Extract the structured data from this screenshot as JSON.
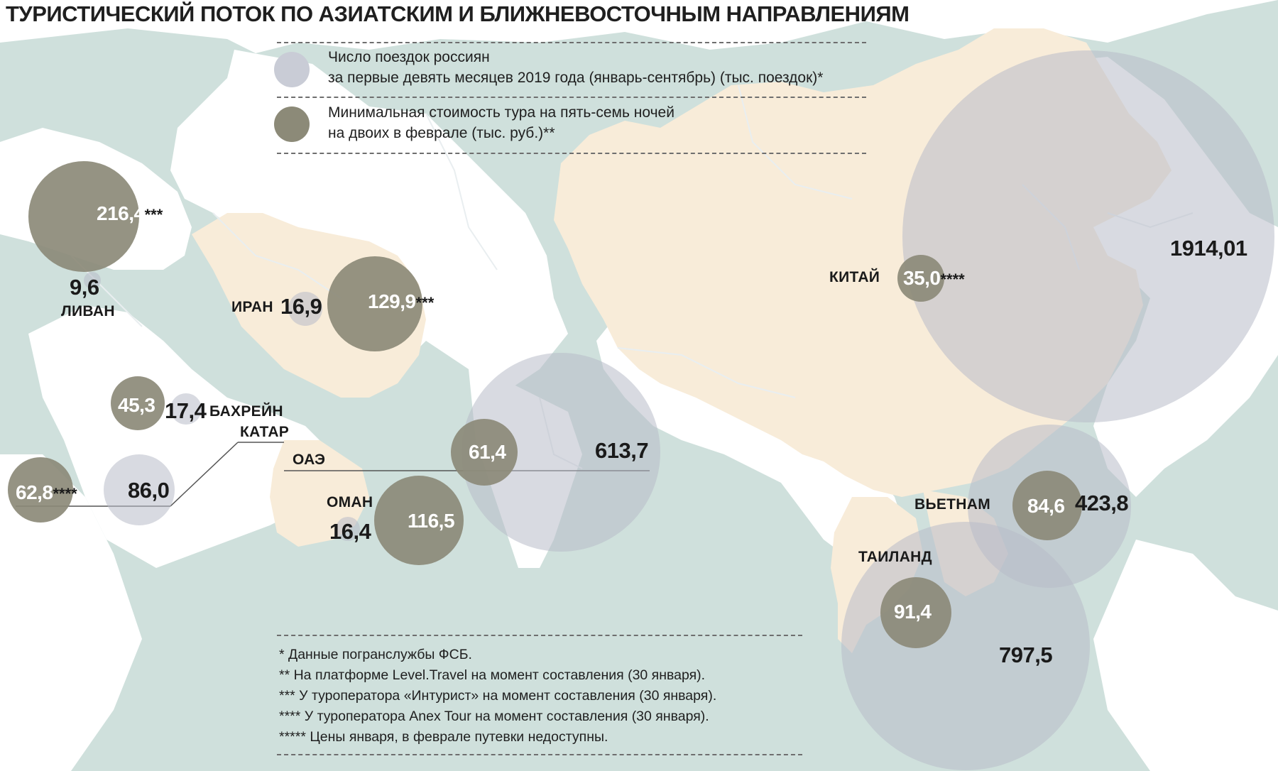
{
  "title": "ТУРИСТИЧЕСКИЙ ПОТОК ПО АЗИАТСКИМ И БЛИЖНЕВОСТОЧНЫМ НАПРАВЛЕНИЯМ",
  "legend": {
    "trips": {
      "line1": "Число поездок россиян",
      "line2": "за первые девять месяцев 2019 года (январь-сентябрь) (тыс. поездок)*",
      "color": "#c9ccd6"
    },
    "price": {
      "line1": "Минимальная стоимость тура на пять-семь ночей",
      "line2": "на двоих в феврале (тыс. руб.)**",
      "color": "#8c8a78"
    }
  },
  "colors": {
    "sea": "#cfe0dc",
    "land_other": "#ffffff",
    "land_highlight": "#f8ecd9",
    "trips_bubble": "#b8bcc8",
    "price_bubble": "#8c8a78",
    "border_line": "#e9eef0"
  },
  "destinations": [
    {
      "country": "ЛИВАН",
      "trips": "9,6",
      "trips_value": 9.6,
      "price": "216,4",
      "price_value": 216.4,
      "price_note": "***"
    },
    {
      "country": "ИРАН",
      "trips": "16,9",
      "trips_value": 16.9,
      "price": "129,9",
      "price_value": 129.9,
      "price_note": "***"
    },
    {
      "country": "БАХРЕЙН",
      "trips": "17,4",
      "trips_value": 17.4,
      "price": "45,3",
      "price_value": 45.3,
      "price_note": ""
    },
    {
      "country": "КАТАР",
      "trips": "86,0",
      "trips_value": 86.0,
      "price": "62,8",
      "price_value": 62.8,
      "price_note": "****"
    },
    {
      "country": "ОАЭ",
      "trips": "613,7",
      "trips_value": 613.7,
      "price": "61,4",
      "price_value": 61.4,
      "price_note": ""
    },
    {
      "country": "ОМАН",
      "trips": "16,4",
      "trips_value": 16.4,
      "price": "116,5",
      "price_value": 116.5,
      "price_note": ""
    },
    {
      "country": "КИТАЙ",
      "trips": "1914,01",
      "trips_value": 1914.01,
      "price": "35,0",
      "price_value": 35.0,
      "price_note": "****"
    },
    {
      "country": "ВЬЕТНАМ",
      "trips": "423,8",
      "trips_value": 423.8,
      "price": "84,6",
      "price_value": 84.6,
      "price_note": ""
    },
    {
      "country": "ТАИЛАНД",
      "trips": "797,5",
      "trips_value": 797.5,
      "price": "91,4",
      "price_value": 91.4,
      "price_note": ""
    }
  ],
  "footnotes": [
    "* Данные погранслужбы ФСБ.",
    "** На платформе Level.Travel на момент составления (30 января).",
    "*** У туроператора «Интурист» на момент составления (30 января).",
    "**** У туроператора Anex Tour на момент составления (30 января).",
    "***** Цены января, в феврале путевки недоступны."
  ]
}
